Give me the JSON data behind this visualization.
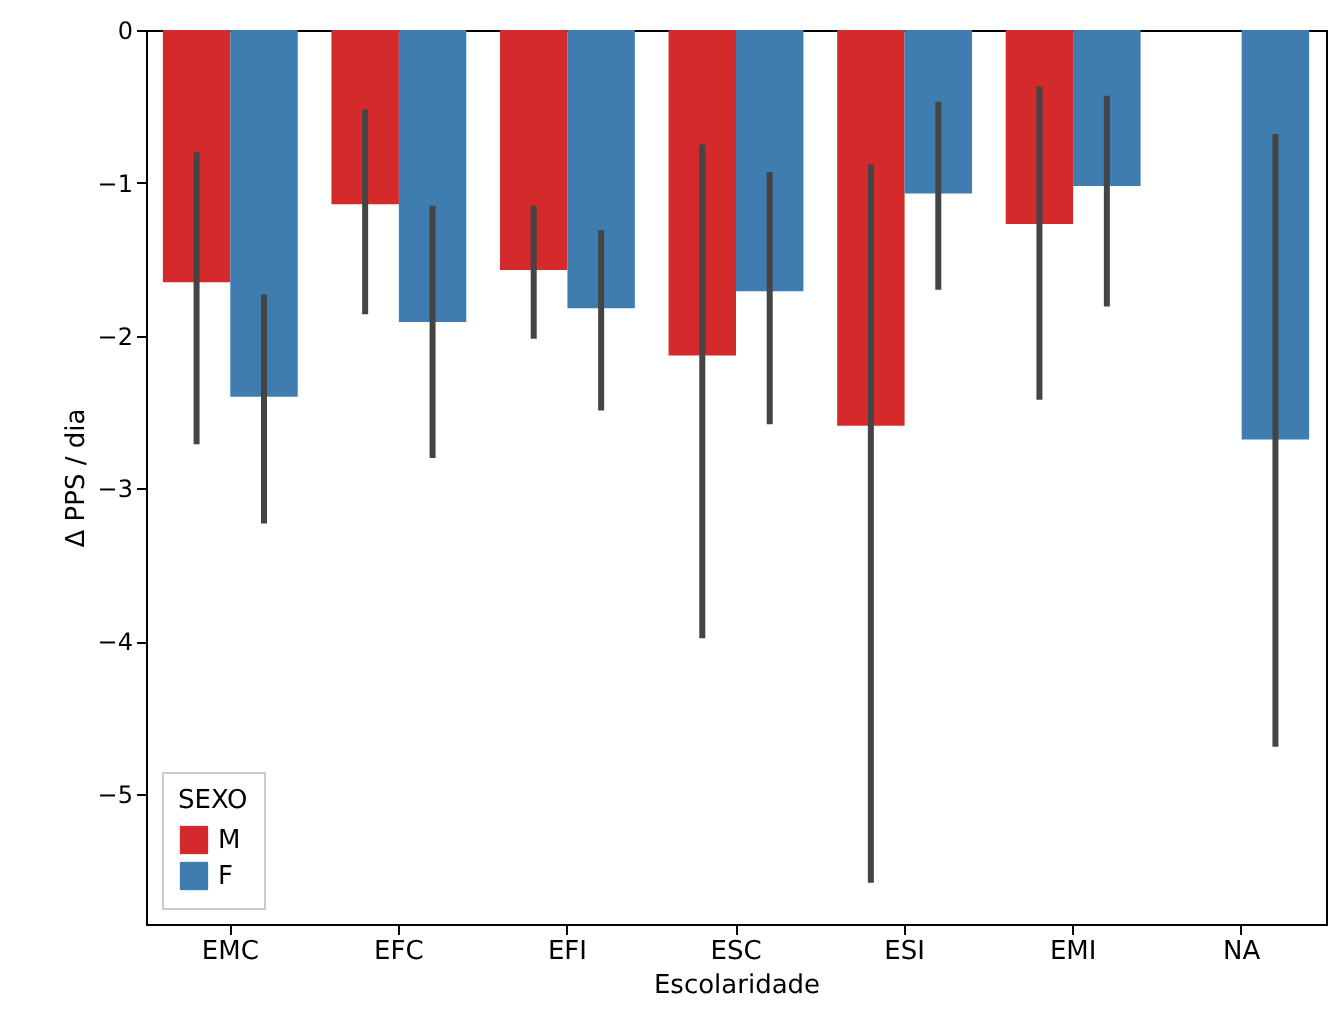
{
  "chart_data": {
    "type": "bar",
    "xlabel": "Escolaridade",
    "ylabel": "Δ PPS / dia",
    "legend_title": "SEXO",
    "legend": "bottom left",
    "categories": [
      "EMC",
      "EFC",
      "EFI",
      "ESC",
      "ESI",
      "EMI",
      "NA"
    ],
    "ylim": [
      -5.85,
      0
    ],
    "yticks": [
      0,
      -1,
      -2,
      -3,
      -4,
      -5
    ],
    "series": [
      {
        "name": "M",
        "color": "#d42a2c",
        "values": [
          -1.65,
          -1.14,
          -1.57,
          -2.13,
          -2.59,
          -1.27,
          null
        ],
        "errors": [
          [
            -2.71,
            -0.8
          ],
          [
            -1.86,
            -0.52
          ],
          [
            -2.02,
            -1.15
          ],
          [
            -3.98,
            -0.75
          ],
          [
            -5.58,
            -0.88
          ],
          [
            -2.42,
            -0.37
          ],
          null
        ]
      },
      {
        "name": "F",
        "color": "#3f7cb0",
        "values": [
          -2.4,
          -1.91,
          -1.82,
          -1.71,
          -1.07,
          -1.02,
          -2.68
        ],
        "errors": [
          [
            -3.23,
            -1.73
          ],
          [
            -2.8,
            -1.15
          ],
          [
            -2.49,
            -1.31
          ],
          [
            -2.58,
            -0.93
          ],
          [
            -1.7,
            -0.47
          ],
          [
            -1.81,
            -0.43
          ],
          [
            -4.69,
            -0.68
          ]
        ]
      }
    ]
  }
}
